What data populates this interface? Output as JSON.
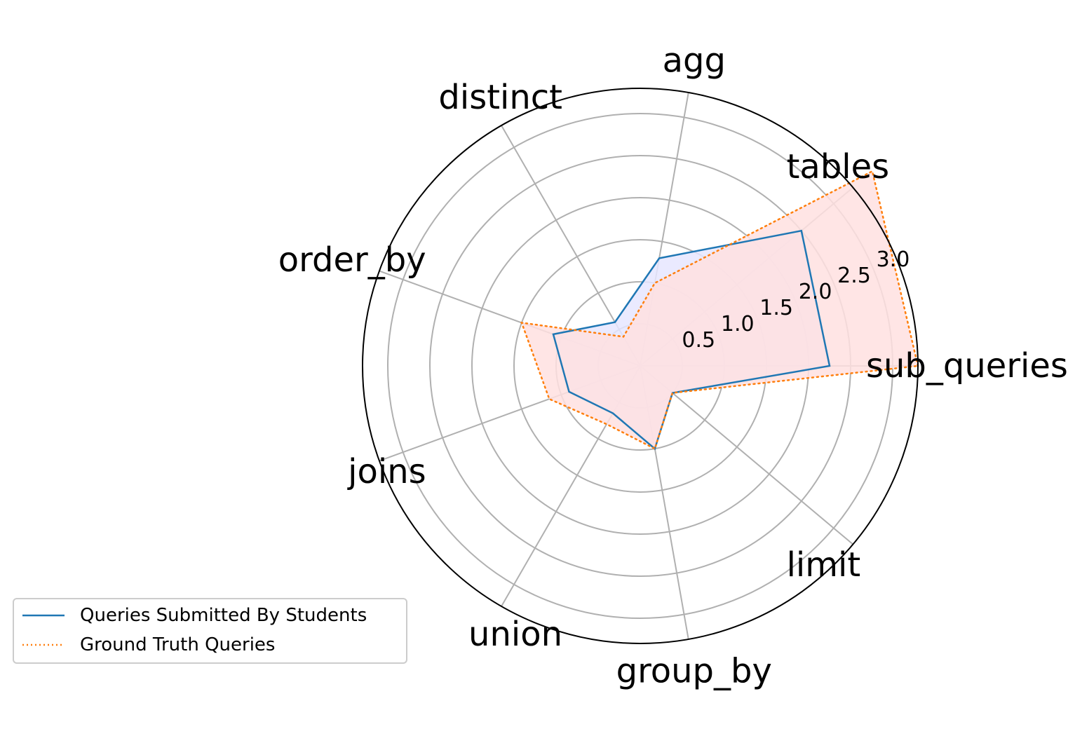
{
  "chart_data": {
    "type": "radar",
    "categories": [
      "sub_queries",
      "tables",
      "agg",
      "distinct",
      "order_by",
      "joins",
      "union",
      "group_by",
      "limit"
    ],
    "series": [
      {
        "name": "Queries Submitted By Students",
        "values": [
          2.25,
          2.5,
          1.3,
          0.6,
          1.1,
          0.9,
          0.65,
          1.0,
          0.5
        ],
        "color": "#1f77b4",
        "fill": "#e6e6ff",
        "line_style": "solid"
      },
      {
        "name": "Ground Truth Queries",
        "values": [
          3.3,
          3.6,
          1.0,
          0.4,
          1.5,
          1.15,
          0.8,
          1.0,
          0.5
        ],
        "color": "#ff7f0e",
        "fill": "#ffe0e0",
        "line_style": "dotted"
      }
    ],
    "r_ticks": [
      0.5,
      1.0,
      1.5,
      2.0,
      2.5,
      3.0
    ],
    "r_tick_labels": [
      "0.5",
      "1.0",
      "1.5",
      "2.0",
      "2.5",
      "3.0"
    ],
    "rlim": [
      0,
      3.3
    ],
    "grid": true,
    "legend_position": "lower-left"
  }
}
